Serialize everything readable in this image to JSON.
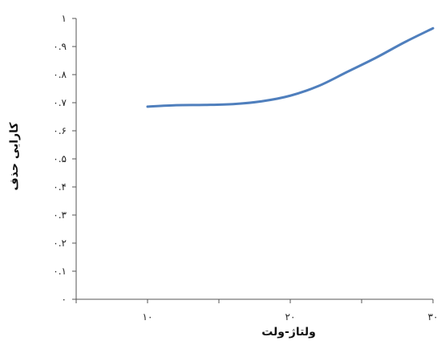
{
  "chart_data": {
    "type": "line",
    "title": "",
    "xlabel": "ولتاژ-ولت",
    "ylabel": "کارایی حذف",
    "xlim": [
      5,
      30
    ],
    "ylim": [
      0,
      1
    ],
    "x_ticks": [
      10,
      20,
      30
    ],
    "x_tick_labels": [
      "۱۰",
      "۲۰",
      "۳۰"
    ],
    "y_ticks": [
      0,
      0.1,
      0.2,
      0.3,
      0.4,
      0.5,
      0.6,
      0.7,
      0.8,
      0.9,
      1
    ],
    "y_tick_labels": [
      "۰",
      "۰.۱",
      "۰.۲",
      "۰.۳",
      "۰.۴",
      "۰.۵",
      "۰.۶",
      "۰.۷",
      "۰.۸",
      "۰.۹",
      "۱"
    ],
    "grid": false,
    "color": "#4f7fbd",
    "series": [
      {
        "x": [
          10,
          12,
          14,
          16,
          18,
          20,
          22,
          24,
          26,
          28,
          30
        ],
        "values": [
          0.686,
          0.691,
          0.692,
          0.695,
          0.705,
          0.725,
          0.76,
          0.81,
          0.86,
          0.915,
          0.965
        ]
      }
    ]
  }
}
